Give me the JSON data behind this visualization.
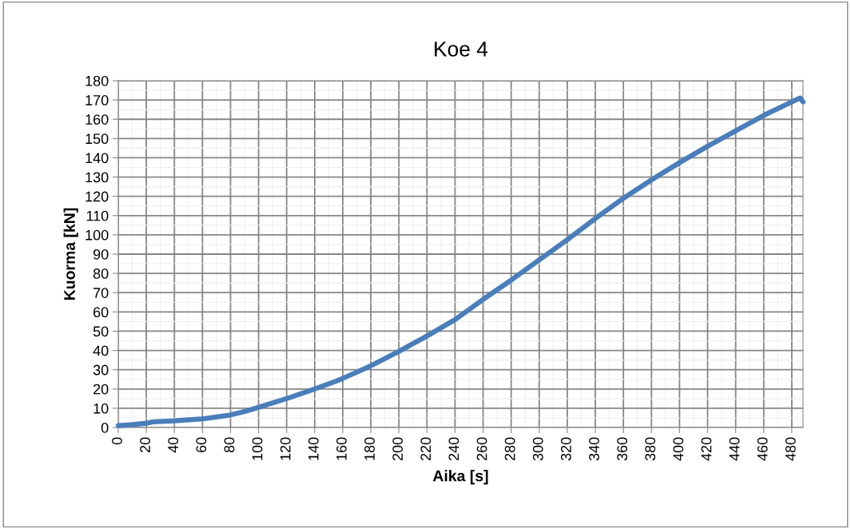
{
  "chart_data": {
    "type": "line",
    "title": "Koe 4",
    "xlabel": "Aika [s]",
    "ylabel": "Kuorma [kN]",
    "series": [
      {
        "color": "#4a7ebb",
        "x": [
          0,
          10,
          20,
          25,
          40,
          60,
          80,
          90,
          100,
          120,
          140,
          155,
          160,
          180,
          200,
          220,
          240,
          260,
          280,
          300,
          320,
          340,
          360,
          380,
          400,
          420,
          440,
          460,
          480,
          486,
          488
        ],
        "values": [
          1,
          1.5,
          2.2,
          3,
          3.5,
          4.5,
          6.5,
          8.3,
          10.5,
          15,
          20,
          24,
          25.5,
          32,
          39.5,
          47.5,
          56,
          66.5,
          76.5,
          87,
          97.5,
          108.5,
          119,
          128.5,
          137.5,
          146,
          154,
          162,
          169,
          171,
          169
        ]
      }
    ],
    "xlim": [
      0,
      488
    ],
    "xticks": [
      0,
      20,
      40,
      60,
      80,
      100,
      120,
      140,
      160,
      180,
      200,
      220,
      240,
      260,
      280,
      300,
      320,
      340,
      360,
      380,
      400,
      420,
      440,
      460,
      480
    ],
    "ylim": [
      0,
      180
    ],
    "yticks": [
      0,
      10,
      20,
      30,
      40,
      50,
      60,
      70,
      80,
      90,
      100,
      110,
      120,
      130,
      140,
      150,
      160,
      170,
      180
    ],
    "grid": true,
    "marker": "none",
    "line_style": "solid"
  }
}
